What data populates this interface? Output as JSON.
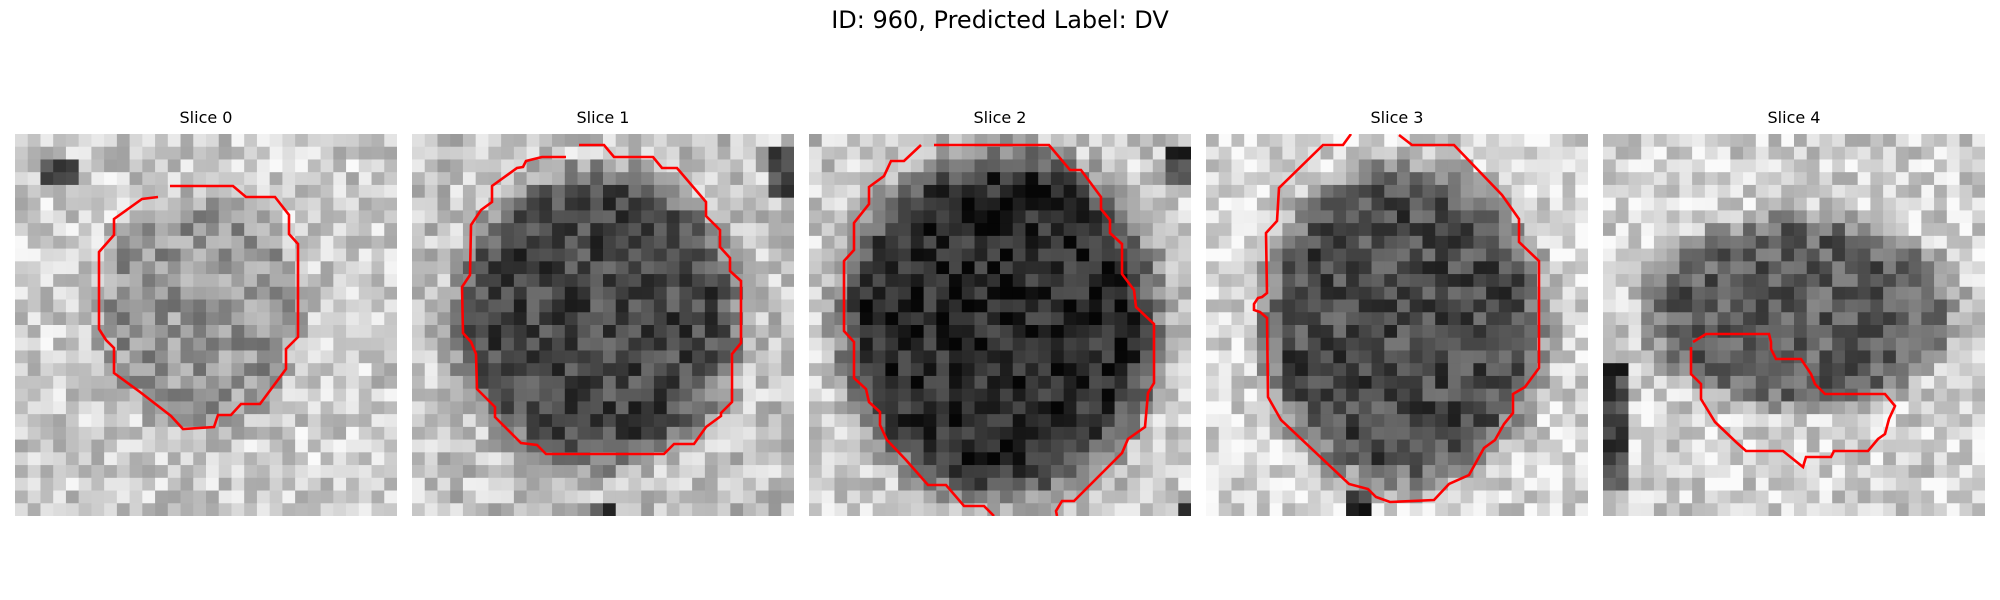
{
  "figure": {
    "title": "ID: 960, Predicted Label: DV"
  },
  "slices": [
    {
      "title": "Slice 0"
    },
    {
      "title": "Slice 1"
    },
    {
      "title": "Slice 2"
    },
    {
      "title": "Slice 3"
    },
    {
      "title": "Slice 4"
    }
  ],
  "colors": {
    "contour": "#ff0000",
    "background": "#ffffff"
  }
}
